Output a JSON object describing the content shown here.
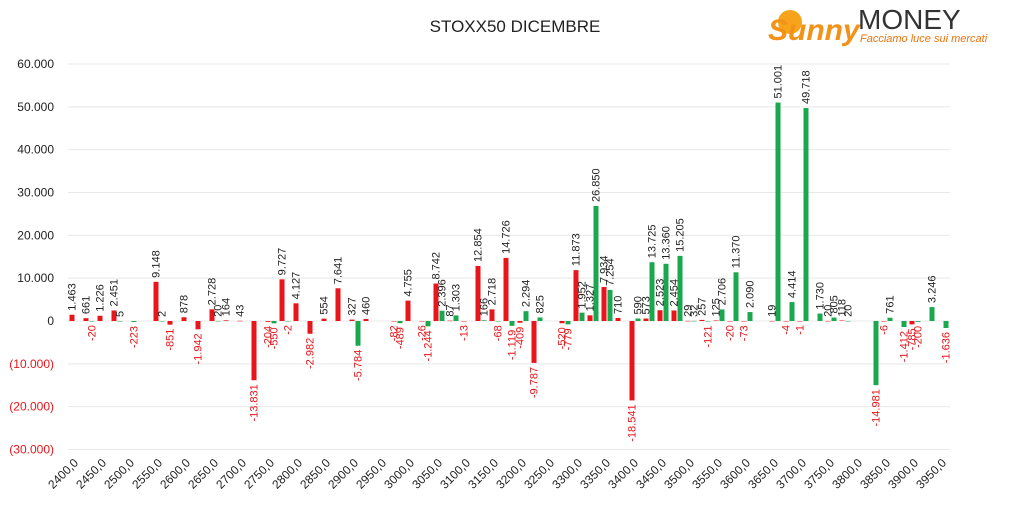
{
  "logo": {
    "brand": "Sunny",
    "name": "MONEY",
    "tagline": "Facciamo luce sui mercati"
  },
  "chart_data": {
    "type": "bar",
    "title": "STOXX50 DICEMBRE",
    "categories": [
      "2400,0",
      null,
      "2450,0",
      null,
      "2500,0",
      null,
      "2550,0",
      null,
      "2600,0",
      null,
      "2650,0",
      null,
      "2700,0",
      null,
      "2750,0",
      null,
      "2800,0",
      null,
      "2850,0",
      null,
      "2900,0",
      null,
      "2950,0",
      null,
      "3000,0",
      null,
      "3050,0",
      null,
      "3100,0",
      null,
      "3150,0",
      null,
      "3200,0",
      null,
      "3250,0",
      null,
      "3300,0",
      null,
      "3350,0",
      null,
      "3400,0",
      null,
      "3450,0",
      null,
      "3500,0",
      null,
      "3550,0",
      null,
      "3600,0",
      null,
      "3650,0",
      null,
      "3700,0",
      null,
      "3750,0",
      null,
      "3800,0",
      null,
      "3850,0",
      null,
      "3900,0",
      null,
      "3950,0"
    ],
    "series": [
      {
        "color": "#e8161b",
        "values": [
          1463,
          661,
          1226,
          2451,
          null,
          null,
          9148,
          -851,
          878,
          -1942,
          2728,
          164,
          43,
          -13831,
          -204,
          9727,
          4127,
          -2982,
          554,
          7641,
          327,
          460,
          null,
          -82,
          4755,
          -26,
          8742,
          87,
          -13,
          12854,
          2718,
          14726,
          -409,
          -9787,
          null,
          -520,
          11873,
          1327,
          7934,
          710,
          -18541,
          573,
          2523,
          2454,
          29,
          257,
          125,
          -20,
          -73,
          null,
          19,
          -4,
          -1,
          null,
          20,
          118,
          null,
          null,
          -6,
          null,
          -785,
          null,
          null
        ],
        "value_labels": [
          "1.463",
          "661",
          "1.226",
          "2.451",
          null,
          null,
          "9.148",
          "-851",
          "878",
          "-1.942",
          "2.728",
          "164",
          "43",
          "-13.831",
          "-204",
          "9.727",
          "4.127",
          "-2.982",
          "554",
          "7.641",
          "327",
          "460",
          null,
          "-82",
          "4.755",
          "-26",
          "8.742",
          "87",
          "-13",
          "12.854",
          "2.718",
          "14.726",
          "-409",
          "-9.787",
          null,
          "-520",
          "11.873",
          "1.327",
          "7.934",
          "710",
          "-18.541",
          "573",
          "2.523",
          "2.454",
          "29",
          "257",
          "125",
          "-20",
          "-73",
          null,
          "19",
          "-4",
          "-1",
          null,
          "20",
          "118",
          null,
          null,
          "-6",
          null,
          "-785",
          null,
          null
        ]
      },
      {
        "color": "#1aa84f",
        "values": [
          null,
          -20,
          null,
          5,
          -223,
          null,
          2,
          null,
          null,
          null,
          20,
          null,
          null,
          null,
          -550,
          -2,
          null,
          null,
          null,
          null,
          -5784,
          null,
          null,
          -489,
          null,
          -1244,
          2396,
          1303,
          null,
          166,
          -68,
          -1119,
          2294,
          825,
          null,
          -779,
          1952,
          26850,
          7254,
          null,
          590,
          13725,
          13360,
          15205,
          32,
          -121,
          2706,
          11370,
          2090,
          null,
          51001,
          4414,
          49718,
          1730,
          805,
          20,
          null,
          -14981,
          761,
          -1412,
          -200,
          3246,
          -1636
        ],
        "value_labels": [
          null,
          "-20",
          null,
          "5",
          "-223",
          null,
          "2",
          null,
          null,
          null,
          "20",
          null,
          null,
          null,
          "-550",
          "-2",
          null,
          null,
          null,
          null,
          "-5.784",
          null,
          null,
          "-489",
          null,
          "-1.244",
          "2.396",
          "1.303",
          null,
          "166",
          "-68",
          "-1.119",
          "2.294",
          "825",
          null,
          "-779",
          "1.952",
          "26.850",
          "7.254",
          null,
          "590",
          "13.725",
          "13.360",
          "15.205",
          "32",
          "-121",
          "2.706",
          "11.370",
          "2.090",
          null,
          "51.001",
          "4.414",
          "49.718",
          "1.730",
          "805",
          "20",
          null,
          "-14.981",
          "761",
          "-1.412",
          "-200",
          "3.246",
          "-1.636"
        ]
      }
    ],
    "ylim": [
      -30000,
      60000
    ],
    "yticks": [
      {
        "value": -30000,
        "label": "(30.000)"
      },
      {
        "value": -20000,
        "label": "(20.000)"
      },
      {
        "value": -10000,
        "label": "(10.000)"
      },
      0,
      {
        "value": 10000,
        "label": "10.000"
      },
      {
        "value": 20000,
        "label": "20.000"
      },
      {
        "value": 30000,
        "label": "30.000"
      },
      {
        "value": 40000,
        "label": "40.000"
      },
      {
        "value": 50000,
        "label": "50.000"
      },
      {
        "value": 60000,
        "label": "60.000"
      }
    ],
    "grid": true,
    "negative_color": "#e8161b"
  }
}
